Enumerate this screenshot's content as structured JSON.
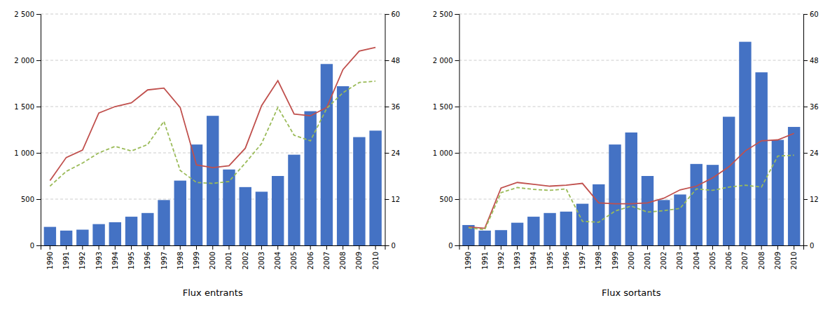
{
  "chart_data": [
    {
      "type": "bar",
      "x_label": "Flux entrants",
      "categories": [
        "1990",
        "1991",
        "1992",
        "1993",
        "1994",
        "1995",
        "1996",
        "1997",
        "1998",
        "1999",
        "2000",
        "2001",
        "2002",
        "2003",
        "2004",
        "2005",
        "2006",
        "2007",
        "2008",
        "2009",
        "2010"
      ],
      "series": [
        {
          "type": "bar",
          "color": "#4472C4",
          "values": [
            200,
            160,
            170,
            230,
            250,
            310,
            350,
            490,
            700,
            1090,
            1400,
            820,
            630,
            580,
            750,
            980,
            1450,
            1960,
            1720,
            1170,
            1240
          ]
        },
        {
          "type": "line",
          "color": "#C0504D",
          "line_style": "solid",
          "values": [
            700,
            950,
            1030,
            1430,
            1500,
            1540,
            1680,
            1700,
            1490,
            870,
            840,
            860,
            1050,
            1510,
            1780,
            1420,
            1400,
            1490,
            1900,
            2100,
            2140
          ]
        },
        {
          "type": "line",
          "color": "#9BBB59",
          "line_style": "dashed",
          "values": [
            640,
            800,
            890,
            1000,
            1070,
            1020,
            1090,
            1340,
            810,
            680,
            670,
            690,
            890,
            1100,
            1490,
            1190,
            1130,
            1480,
            1650,
            1760,
            1775
          ]
        }
      ],
      "ylim": [
        0,
        2500
      ],
      "yticks": [
        0,
        500,
        {
          "value": 1000,
          "label": "1 000"
        },
        {
          "value": 1500,
          "label": "1 500"
        },
        {
          "value": 2000,
          "label": "2 000"
        },
        {
          "value": 2500,
          "label": "2 500"
        }
      ],
      "y2lim": [
        0,
        60
      ],
      "y2ticks": [
        0,
        12,
        24,
        36,
        48,
        60
      ],
      "grid": true
    },
    {
      "type": "bar",
      "x_label": "Flux sortants",
      "categories": [
        "1990",
        "1991",
        "1992",
        "1993",
        "1994",
        "1995",
        "1996",
        "1997",
        "1998",
        "1999",
        "2000",
        "2001",
        "2002",
        "2003",
        "2004",
        "2005",
        "2006",
        "2007",
        "2008",
        "2009",
        "2010"
      ],
      "series": [
        {
          "type": "bar",
          "color": "#4472C4",
          "values": [
            220,
            160,
            165,
            245,
            310,
            350,
            365,
            450,
            660,
            1090,
            1220,
            750,
            490,
            550,
            880,
            870,
            1390,
            2200,
            1870,
            1140,
            1280
          ]
        },
        {
          "type": "line",
          "color": "#C0504D",
          "line_style": "solid",
          "values": [
            200,
            185,
            620,
            680,
            660,
            640,
            650,
            670,
            460,
            450,
            450,
            460,
            510,
            600,
            640,
            730,
            850,
            1020,
            1130,
            1140,
            1210
          ]
        },
        {
          "type": "line",
          "color": "#9BBB59",
          "line_style": "dashed",
          "values": [
            190,
            170,
            570,
            625,
            605,
            595,
            610,
            260,
            250,
            370,
            425,
            360,
            375,
            400,
            610,
            595,
            630,
            650,
            630,
            965,
            975
          ]
        }
      ],
      "ylim": [
        0,
        2500
      ],
      "yticks": [
        0,
        500,
        {
          "value": 1000,
          "label": "1 000"
        },
        {
          "value": 1500,
          "label": "1 500"
        },
        {
          "value": 2000,
          "label": "2 000"
        },
        {
          "value": 2500,
          "label": "2 500"
        }
      ],
      "y2lim": [
        0,
        60
      ],
      "y2ticks": [
        0,
        12,
        24,
        36,
        48,
        60
      ],
      "grid": true
    }
  ]
}
